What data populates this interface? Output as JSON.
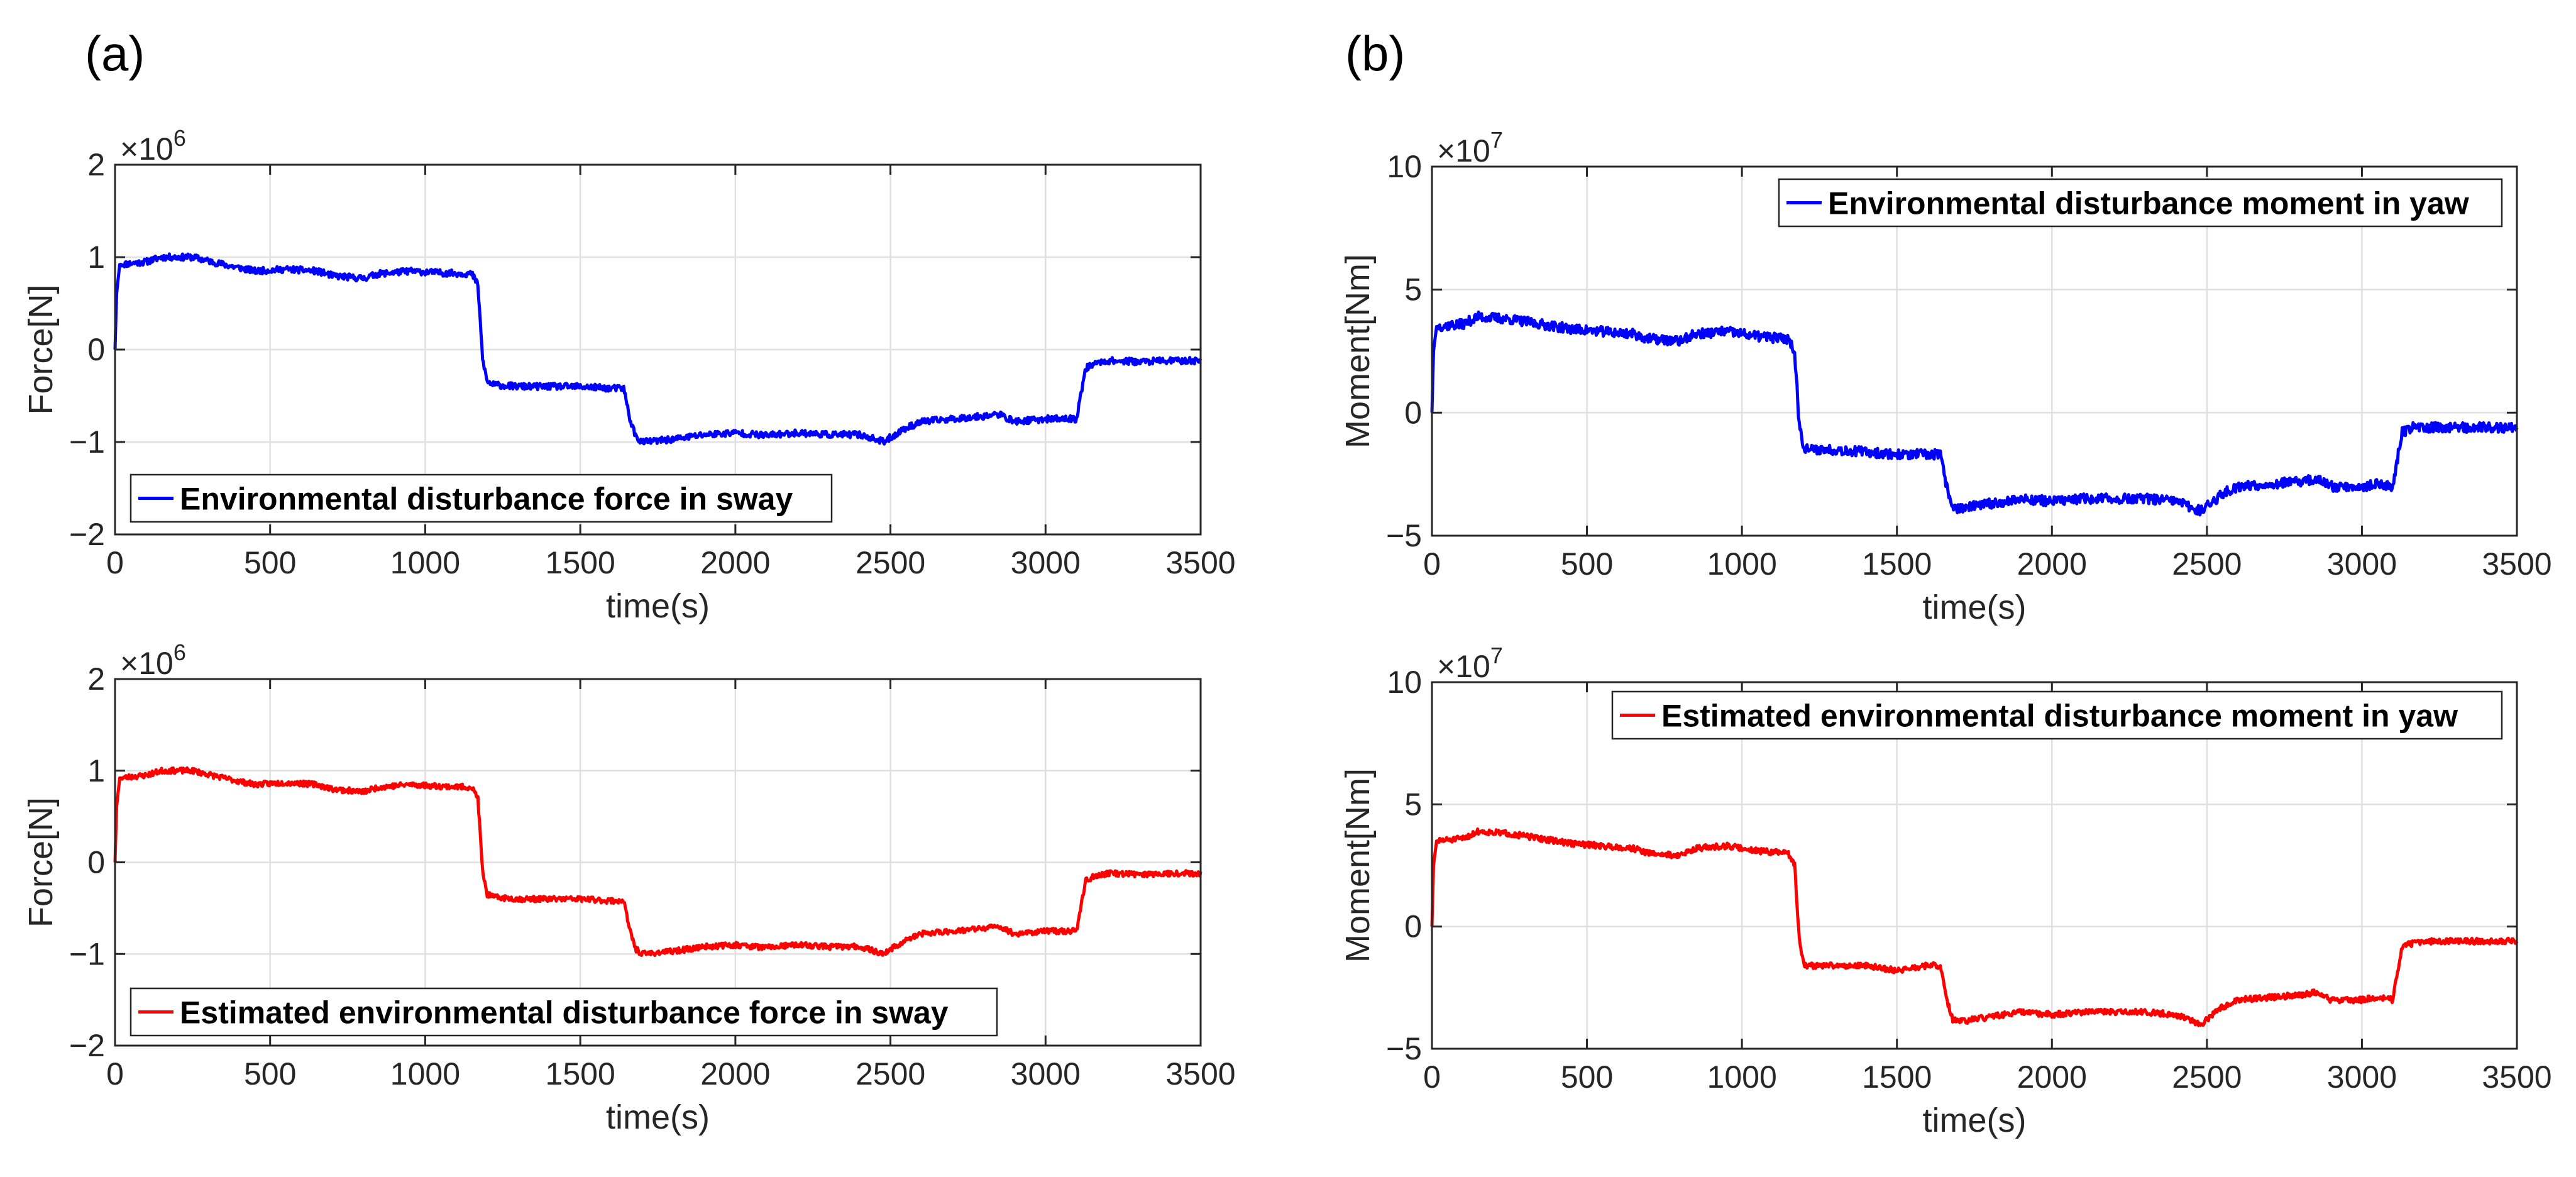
{
  "figure": {
    "panel_labels": [
      "(a)",
      "(b)"
    ]
  },
  "chart_data": [
    {
      "type": "line",
      "panel": "(a)",
      "position": "top",
      "xlabel": "time(s)",
      "ylabel": "Force[N]",
      "exponent_base": "×10",
      "exponent_power": "6",
      "xlim": [
        0,
        3500
      ],
      "ylim": [
        -2,
        2
      ],
      "xticks": [
        0,
        500,
        1000,
        1500,
        2000,
        2500,
        3000,
        3500
      ],
      "yticks": [
        -2,
        -1,
        0,
        1,
        2
      ],
      "ytick_labels": [
        "−2",
        "−1",
        "0",
        "1",
        "2"
      ],
      "grid": true,
      "legend": {
        "position": "bottom-left",
        "entries": [
          "Environmental disturbance force in sway"
        ]
      },
      "series": [
        {
          "name": "Environmental disturbance force in sway",
          "color": "#0000ff",
          "noise": 0.035,
          "seed": 11,
          "x": [
            0,
            5,
            15,
            100,
            150,
            250,
            350,
            450,
            550,
            650,
            700,
            800,
            850,
            950,
            1050,
            1150,
            1170,
            1185,
            1200,
            1220,
            1300,
            1400,
            1500,
            1600,
            1640,
            1660,
            1680,
            1700,
            1800,
            1900,
            2000,
            2100,
            2200,
            2300,
            2400,
            2480,
            2500,
            2550,
            2600,
            2700,
            2800,
            2850,
            2900,
            3000,
            3050,
            3100,
            3110,
            3130,
            3160,
            3200,
            3300,
            3400,
            3500
          ],
          "y": [
            0.0,
            0.6,
            0.92,
            0.95,
            1.0,
            1.0,
            0.92,
            0.85,
            0.87,
            0.85,
            0.8,
            0.77,
            0.82,
            0.85,
            0.83,
            0.82,
            0.7,
            -0.1,
            -0.35,
            -0.38,
            -0.4,
            -0.4,
            -0.4,
            -0.42,
            -0.42,
            -0.75,
            -0.95,
            -1.0,
            -0.97,
            -0.92,
            -0.9,
            -0.93,
            -0.9,
            -0.92,
            -0.92,
            -1.0,
            -0.95,
            -0.85,
            -0.78,
            -0.75,
            -0.72,
            -0.7,
            -0.78,
            -0.75,
            -0.75,
            -0.75,
            -0.55,
            -0.2,
            -0.15,
            -0.12,
            -0.13,
            -0.12,
            -0.12
          ]
        }
      ]
    },
    {
      "type": "line",
      "panel": "(a)",
      "position": "bottom",
      "xlabel": "time(s)",
      "ylabel": "Force[N]",
      "exponent_base": "×10",
      "exponent_power": "6",
      "xlim": [
        0,
        3500
      ],
      "ylim": [
        -2,
        2
      ],
      "xticks": [
        0,
        500,
        1000,
        1500,
        2000,
        2500,
        3000,
        3500
      ],
      "yticks": [
        -2,
        -1,
        0,
        1,
        2
      ],
      "ytick_labels": [
        "−2",
        "−1",
        "0",
        "1",
        "2"
      ],
      "grid": true,
      "legend": {
        "position": "bottom-left",
        "entries": [
          "Estimated environmental disturbance force in sway"
        ]
      },
      "series": [
        {
          "name": "Estimated environmental disturbance force in sway",
          "color": "#ff0000",
          "noise": 0.03,
          "seed": 23,
          "x": [
            0,
            5,
            15,
            100,
            150,
            250,
            350,
            450,
            550,
            650,
            700,
            800,
            850,
            950,
            1050,
            1150,
            1170,
            1185,
            1200,
            1220,
            1300,
            1400,
            1500,
            1600,
            1640,
            1660,
            1680,
            1700,
            1800,
            1900,
            2000,
            2100,
            2200,
            2300,
            2400,
            2480,
            2500,
            2550,
            2600,
            2700,
            2800,
            2850,
            2900,
            3000,
            3050,
            3100,
            3110,
            3130,
            3160,
            3200,
            3300,
            3400,
            3500
          ],
          "y": [
            0.0,
            0.6,
            0.92,
            0.95,
            1.0,
            1.0,
            0.92,
            0.85,
            0.87,
            0.85,
            0.8,
            0.77,
            0.82,
            0.85,
            0.83,
            0.82,
            0.7,
            -0.1,
            -0.35,
            -0.38,
            -0.4,
            -0.4,
            -0.4,
            -0.42,
            -0.42,
            -0.75,
            -0.95,
            -1.0,
            -0.97,
            -0.92,
            -0.9,
            -0.93,
            -0.9,
            -0.92,
            -0.92,
            -1.0,
            -0.95,
            -0.85,
            -0.78,
            -0.75,
            -0.72,
            -0.7,
            -0.78,
            -0.75,
            -0.75,
            -0.75,
            -0.55,
            -0.2,
            -0.15,
            -0.12,
            -0.13,
            -0.12,
            -0.12
          ]
        }
      ]
    },
    {
      "type": "line",
      "panel": "(b)",
      "position": "top",
      "xlabel": "time(s)",
      "ylabel": "Moment[Nm]",
      "exponent_base": "×10",
      "exponent_power": "7",
      "xlim": [
        0,
        3500
      ],
      "ylim": [
        -5,
        10
      ],
      "xticks": [
        0,
        500,
        1000,
        1500,
        2000,
        2500,
        3000,
        3500
      ],
      "yticks": [
        -5,
        0,
        5,
        10
      ],
      "ytick_labels": [
        "−5",
        "0",
        "5",
        "10"
      ],
      "grid": true,
      "legend": {
        "position": "top-right",
        "entries": [
          "Environmental disturbance moment in yaw"
        ]
      },
      "series": [
        {
          "name": "Environmental disturbance moment in yaw",
          "color": "#0000ff",
          "noise": 0.2,
          "seed": 37,
          "x": [
            0,
            5,
            15,
            100,
            150,
            250,
            350,
            450,
            550,
            650,
            700,
            800,
            850,
            950,
            1050,
            1150,
            1170,
            1185,
            1200,
            1220,
            1300,
            1400,
            1500,
            1600,
            1640,
            1660,
            1680,
            1700,
            1800,
            1900,
            2000,
            2100,
            2200,
            2300,
            2400,
            2480,
            2500,
            2550,
            2600,
            2700,
            2800,
            2850,
            2900,
            3000,
            3050,
            3100,
            3110,
            3130,
            3160,
            3200,
            3300,
            3400,
            3500
          ],
          "y": [
            0.0,
            2.5,
            3.5,
            3.6,
            3.9,
            3.8,
            3.6,
            3.4,
            3.3,
            3.2,
            3.0,
            2.9,
            3.2,
            3.3,
            3.1,
            3.0,
            2.5,
            -0.5,
            -1.4,
            -1.5,
            -1.5,
            -1.6,
            -1.7,
            -1.7,
            -1.7,
            -3.0,
            -3.8,
            -3.9,
            -3.7,
            -3.5,
            -3.6,
            -3.5,
            -3.5,
            -3.5,
            -3.6,
            -4.0,
            -3.8,
            -3.3,
            -3.0,
            -2.9,
            -2.8,
            -2.7,
            -3.0,
            -3.0,
            -2.9,
            -3.0,
            -2.2,
            -0.8,
            -0.6,
            -0.6,
            -0.6,
            -0.6,
            -0.6
          ]
        }
      ]
    },
    {
      "type": "line",
      "panel": "(b)",
      "position": "bottom",
      "xlabel": "time(s)",
      "ylabel": "Moment[Nm]",
      "exponent_base": "×10",
      "exponent_power": "7",
      "xlim": [
        0,
        3500
      ],
      "ylim": [
        -5,
        10
      ],
      "xticks": [
        0,
        500,
        1000,
        1500,
        2000,
        2500,
        3000,
        3500
      ],
      "yticks": [
        -5,
        0,
        5,
        10
      ],
      "ytick_labels": [
        "−5",
        "0",
        "5",
        "10"
      ],
      "grid": true,
      "legend": {
        "position": "top-right",
        "entries": [
          "Estimated environmental disturbance moment in yaw"
        ]
      },
      "series": [
        {
          "name": "Estimated environmental disturbance moment in yaw",
          "color": "#ff0000",
          "noise": 0.12,
          "seed": 51,
          "x": [
            0,
            5,
            15,
            100,
            150,
            250,
            350,
            450,
            550,
            650,
            700,
            800,
            850,
            950,
            1050,
            1150,
            1170,
            1185,
            1200,
            1220,
            1300,
            1400,
            1500,
            1600,
            1640,
            1660,
            1680,
            1700,
            1800,
            1900,
            2000,
            2100,
            2200,
            2300,
            2400,
            2480,
            2500,
            2550,
            2600,
            2700,
            2800,
            2850,
            2900,
            3000,
            3050,
            3100,
            3110,
            3130,
            3160,
            3200,
            3300,
            3400,
            3500
          ],
          "y": [
            0.0,
            2.5,
            3.5,
            3.6,
            3.9,
            3.8,
            3.6,
            3.4,
            3.3,
            3.2,
            3.0,
            2.9,
            3.2,
            3.3,
            3.1,
            3.0,
            2.5,
            -0.5,
            -1.6,
            -1.6,
            -1.6,
            -1.6,
            -1.8,
            -1.6,
            -1.6,
            -3.0,
            -3.8,
            -3.9,
            -3.7,
            -3.5,
            -3.6,
            -3.5,
            -3.5,
            -3.5,
            -3.6,
            -4.0,
            -3.8,
            -3.3,
            -3.0,
            -2.9,
            -2.8,
            -2.7,
            -3.0,
            -3.0,
            -2.9,
            -3.0,
            -2.2,
            -0.8,
            -0.7,
            -0.6,
            -0.6,
            -0.6,
            -0.6
          ]
        }
      ]
    }
  ]
}
